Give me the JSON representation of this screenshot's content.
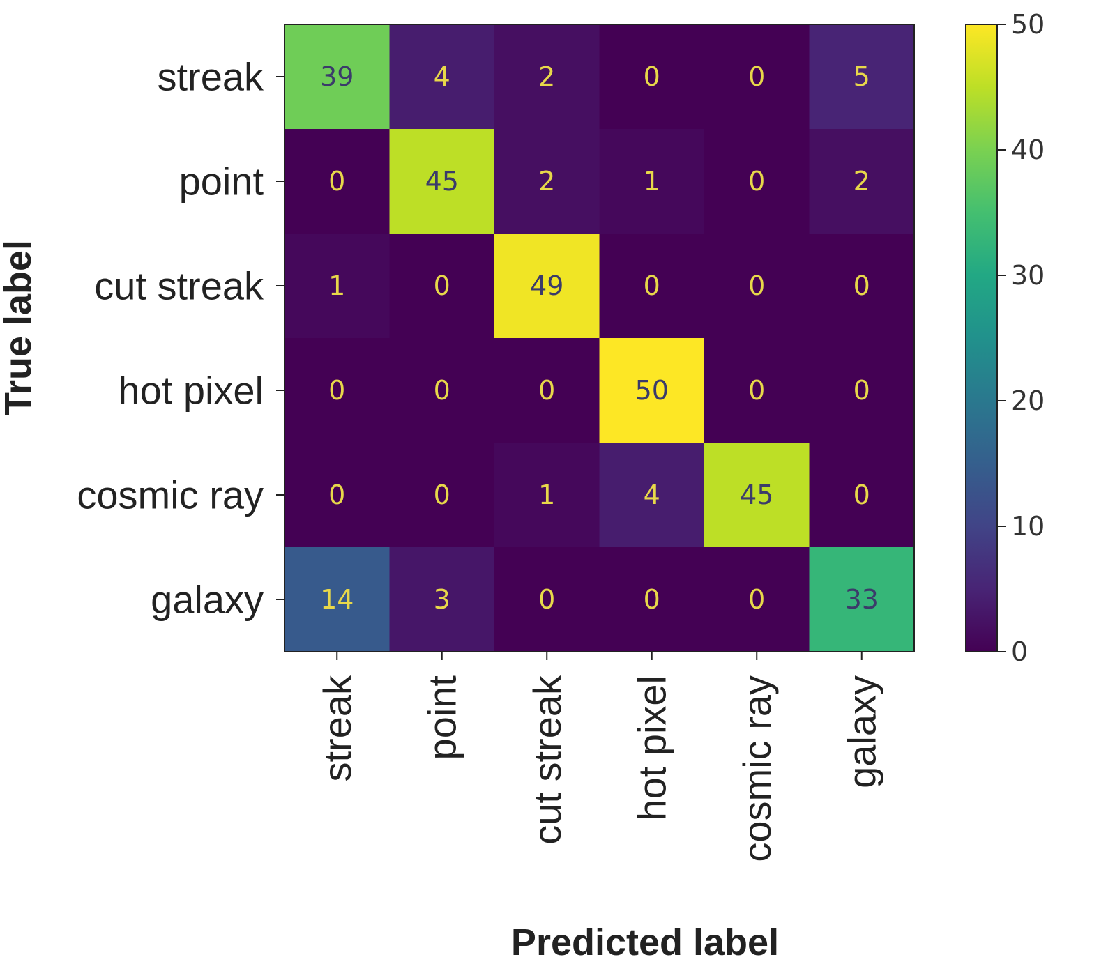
{
  "chart_data": {
    "type": "heatmap",
    "title": "",
    "xlabel": "Predicted label",
    "ylabel": "True label",
    "x_categories": [
      "streak",
      "point",
      "cut streak",
      "hot pixel",
      "cosmic ray",
      "galaxy"
    ],
    "y_categories": [
      "streak",
      "point",
      "cut streak",
      "hot pixel",
      "cosmic ray",
      "galaxy"
    ],
    "values": [
      [
        39,
        4,
        2,
        0,
        0,
        5
      ],
      [
        0,
        45,
        2,
        1,
        0,
        2
      ],
      [
        1,
        0,
        49,
        0,
        0,
        0
      ],
      [
        0,
        0,
        0,
        50,
        0,
        0
      ],
      [
        0,
        0,
        1,
        4,
        45,
        0
      ],
      [
        14,
        3,
        0,
        0,
        0,
        33
      ]
    ],
    "colormap": "viridis",
    "vmin": 0,
    "vmax": 50,
    "colorbar_ticks": [
      0,
      10,
      20,
      30,
      40,
      50
    ],
    "grid": false,
    "colorbar_position": "right"
  }
}
